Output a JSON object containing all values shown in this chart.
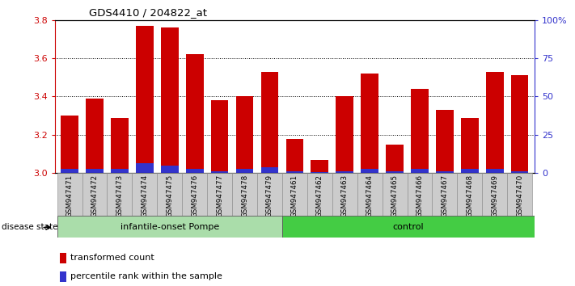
{
  "title": "GDS4410 / 204822_at",
  "samples": [
    "GSM947471",
    "GSM947472",
    "GSM947473",
    "GSM947474",
    "GSM947475",
    "GSM947476",
    "GSM947477",
    "GSM947478",
    "GSM947479",
    "GSM947461",
    "GSM947462",
    "GSM947463",
    "GSM947464",
    "GSM947465",
    "GSM947466",
    "GSM947467",
    "GSM947468",
    "GSM947469",
    "GSM947470"
  ],
  "transformed_count": [
    3.3,
    3.39,
    3.29,
    3.77,
    3.76,
    3.62,
    3.38,
    3.4,
    3.53,
    3.18,
    3.07,
    3.4,
    3.52,
    3.15,
    3.44,
    3.33,
    3.29,
    3.53,
    3.51
  ],
  "percentile_rank": [
    0.02,
    0.02,
    0.02,
    0.05,
    0.04,
    0.02,
    0.01,
    0.02,
    0.03,
    0.01,
    0.005,
    0.01,
    0.02,
    0.01,
    0.02,
    0.01,
    0.02,
    0.02,
    0.01
  ],
  "n_pompe": 9,
  "bar_color": "#cc0000",
  "percentile_color": "#3333cc",
  "ylim": [
    3.0,
    3.8
  ],
  "y_left_ticks": [
    3.0,
    3.2,
    3.4,
    3.6,
    3.8
  ],
  "y_right_ticks": [
    0,
    25,
    50,
    75,
    100
  ],
  "y_right_tick_labels": [
    "0",
    "25",
    "50",
    "75",
    "100%"
  ],
  "ylabel_left_color": "#cc0000",
  "ylabel_right_color": "#3333cc",
  "grid_color": "#000000",
  "bar_width": 0.7,
  "pompe_color": "#aaddaa",
  "control_color": "#44cc44",
  "tick_bg_color": "#cccccc"
}
